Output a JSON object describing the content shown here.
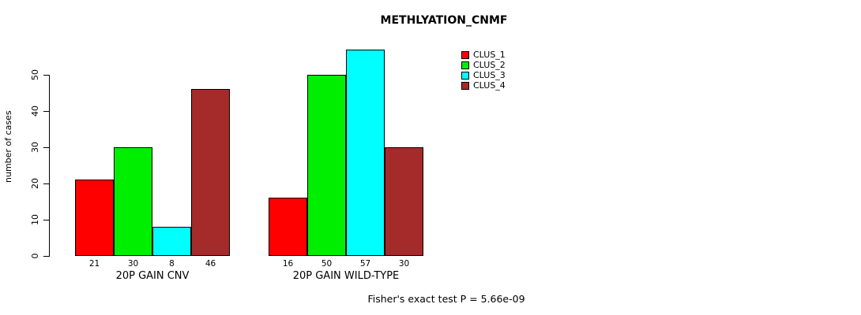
{
  "title": "METHLYATION_CNMF",
  "footer": "Fisher's exact test P = 5.66e-09",
  "chart_data": {
    "type": "bar",
    "title": "METHLYATION_CNMF",
    "ylabel": "number of cases",
    "xlabel": "",
    "ylim": [
      0,
      57
    ],
    "yticks": [
      0,
      10,
      20,
      30,
      40,
      50
    ],
    "grid": "off",
    "legend_position": "top-right",
    "categories": [
      "20P GAIN CNV",
      "20P GAIN WILD-TYPE"
    ],
    "series": [
      {
        "name": "CLUS_1",
        "color": "#ff0000",
        "values": [
          21,
          16
        ]
      },
      {
        "name": "CLUS_2",
        "color": "#00ee00",
        "values": [
          30,
          50
        ]
      },
      {
        "name": "CLUS_3",
        "color": "#00ffff",
        "values": [
          8,
          57
        ]
      },
      {
        "name": "CLUS_4",
        "color": "#a52a2a",
        "values": [
          46,
          30
        ]
      }
    ],
    "bar_labels": [
      [
        21,
        30,
        8,
        46
      ],
      [
        16,
        50,
        57,
        30
      ]
    ],
    "annotation": "Fisher's exact test P = 5.66e-09"
  }
}
